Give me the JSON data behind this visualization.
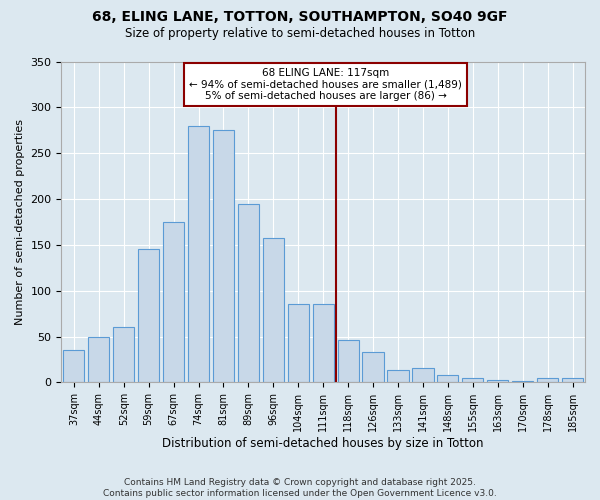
{
  "title1": "68, ELING LANE, TOTTON, SOUTHAMPTON, SO40 9GF",
  "title2": "Size of property relative to semi-detached houses in Totton",
  "xlabel": "Distribution of semi-detached houses by size in Totton",
  "ylabel": "Number of semi-detached properties",
  "categories": [
    "37sqm",
    "44sqm",
    "52sqm",
    "59sqm",
    "67sqm",
    "74sqm",
    "81sqm",
    "89sqm",
    "96sqm",
    "104sqm",
    "111sqm",
    "118sqm",
    "126sqm",
    "133sqm",
    "141sqm",
    "148sqm",
    "155sqm",
    "163sqm",
    "170sqm",
    "178sqm",
    "185sqm"
  ],
  "values": [
    35,
    50,
    60,
    145,
    175,
    280,
    275,
    195,
    157,
    85,
    85,
    46,
    33,
    14,
    16,
    8,
    5,
    3,
    1,
    5,
    5
  ],
  "bar_color": "#c8d8e8",
  "bar_edge_color": "#5b9bd5",
  "vline_color": "#8b0000",
  "annotation_title": "68 ELING LANE: 117sqm",
  "annotation_line1": "← 94% of semi-detached houses are smaller (1,489)",
  "annotation_line2": "5% of semi-detached houses are larger (86) →",
  "annotation_box_color": "#8b0000",
  "ylim": [
    0,
    350
  ],
  "yticks": [
    0,
    50,
    100,
    150,
    200,
    250,
    300,
    350
  ],
  "background_color": "#dce8f0",
  "footer1": "Contains HM Land Registry data © Crown copyright and database right 2025.",
  "footer2": "Contains public sector information licensed under the Open Government Licence v3.0."
}
